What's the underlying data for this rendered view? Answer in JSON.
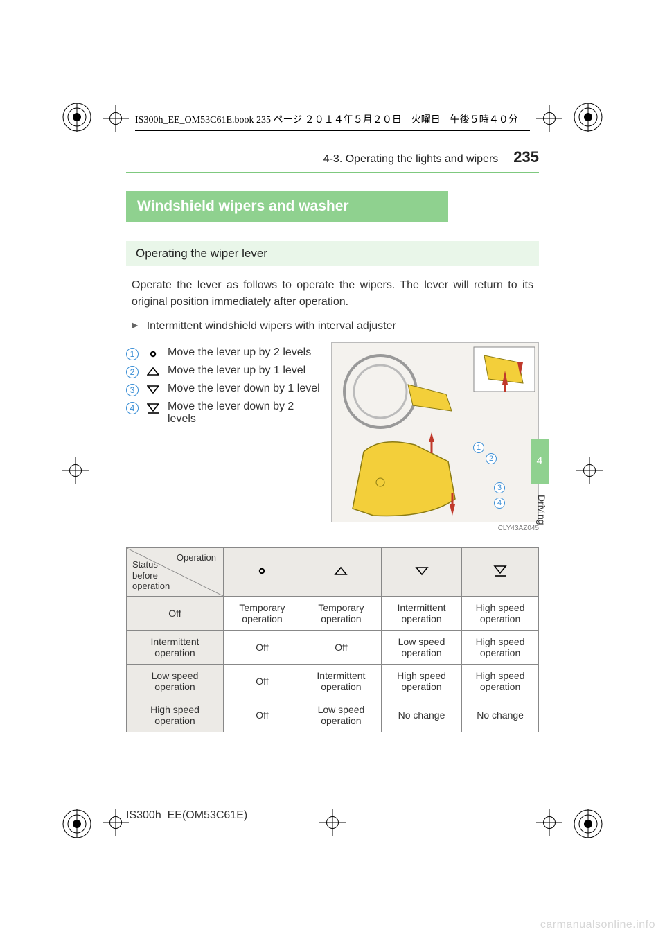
{
  "colors": {
    "accent_green": "#8fd18f",
    "accent_green_rule": "#7fc97f",
    "accent_green_light": "#e9f6e9",
    "callout_blue": "#3b8fd6",
    "table_header_bg": "#eceae6",
    "table_border": "#888888",
    "figure_bg": "#f4f2ee",
    "arrow_red": "#c0392b",
    "lever_yellow": "#f3cf3a",
    "watermark": "#d6d6d6"
  },
  "print_header": "IS300h_EE_OM53C61E.book  235 ページ  ２０１４年５月２０日　火曜日　午後５時４０分",
  "running_head": {
    "section": "4-3. Operating the lights and wipers",
    "page": "235"
  },
  "side_tab": {
    "number": "4",
    "label": "Driving"
  },
  "h1": "Windshield wipers and washer",
  "h2": "Operating the wiper lever",
  "intro": "Operate the lever as follows to operate the wipers. The lever will return to its original position immediately after operation.",
  "subhead": "Intermittent windshield wipers with interval adjuster",
  "instructions": [
    {
      "n": "1",
      "symbol": "dot",
      "text": "Move the lever up by 2 levels"
    },
    {
      "n": "2",
      "symbol": "tri-up",
      "text": "Move the lever up by 1 level"
    },
    {
      "n": "3",
      "symbol": "tri-down",
      "text": "Move the lever down by 1 level"
    },
    {
      "n": "4",
      "symbol": "tri-down2",
      "text": "Move the lever down by 2 levels"
    }
  ],
  "figure_caption": "CLY43AZ045",
  "table": {
    "diag_labels": {
      "top": "Operation",
      "bottom": "Status\nbefore\noperation"
    },
    "col_symbols": [
      "dot",
      "tri-up",
      "tri-down",
      "tri-down2"
    ],
    "rows": [
      {
        "head": "Off",
        "cells": [
          "Temporary operation",
          "Temporary operation",
          "Intermittent operation",
          "High speed operation"
        ]
      },
      {
        "head": "Intermittent operation",
        "cells": [
          "Off",
          "Off",
          "Low speed operation",
          "High speed operation"
        ]
      },
      {
        "head": "Low speed operation",
        "cells": [
          "Off",
          "Intermittent operation",
          "High speed operation",
          "High speed operation"
        ]
      },
      {
        "head": "High speed operation",
        "cells": [
          "Off",
          "Low speed operation",
          "No change",
          "No change"
        ]
      }
    ]
  },
  "footer_code": "IS300h_EE(OM53C61E)",
  "watermark": "carmanualsonline.info"
}
